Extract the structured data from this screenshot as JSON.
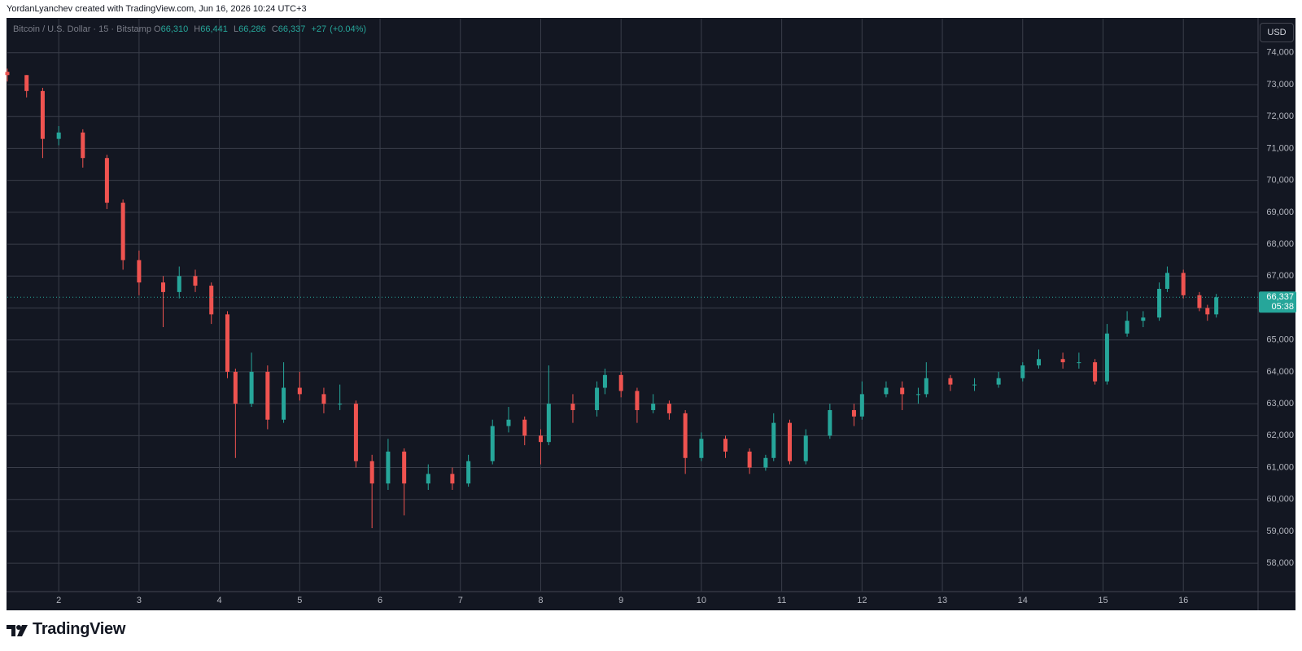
{
  "header": {
    "credit": "YordanLyanchev created with TradingView.com, Jun 16, 2026 10:24 UTC+3"
  },
  "footer": {
    "brand": "TradingView"
  },
  "chart_data": {
    "type": "candlestick",
    "symbol": "Bitcoin / U.S. Dollar · 15 · Bitstamp",
    "currency": "USD",
    "legend": {
      "open_prefix": "O",
      "open": {
        "value": 66310,
        "label": "66,310"
      },
      "high_prefix": "H",
      "high": {
        "value": 66441,
        "label": "66,441"
      },
      "low_prefix": "L",
      "low": {
        "value": 66286,
        "label": "66,286"
      },
      "close_prefix": "C",
      "close": {
        "value": 66337,
        "label": "66,337"
      },
      "change": {
        "value": 27,
        "label": "+27"
      },
      "change_pct": {
        "value": 0.04,
        "label": "(+0.04%)"
      }
    },
    "last_price": {
      "value": 66337,
      "label": "66,337"
    },
    "countdown": "05:38",
    "up_color": "#26a69a",
    "down_color": "#ef5350",
    "grid": true,
    "xlim": [
      1.36,
      16.93
    ],
    "ylim": [
      57112,
      75066
    ],
    "xticks": [
      2,
      3,
      4,
      5,
      6,
      7,
      8,
      9,
      10,
      11,
      12,
      13,
      14,
      15,
      16
    ],
    "yticks": [
      {
        "value": 58000,
        "label": "58,000"
      },
      {
        "value": 59000,
        "label": "59,000"
      },
      {
        "value": 60000,
        "label": "60,000"
      },
      {
        "value": 61000,
        "label": "61,000"
      },
      {
        "value": 62000,
        "label": "62,000"
      },
      {
        "value": 63000,
        "label": "63,000"
      },
      {
        "value": 64000,
        "label": "64,000"
      },
      {
        "value": 65000,
        "label": "65,000"
      },
      {
        "value": 66000,
        "label": "66,000"
      },
      {
        "value": 67000,
        "label": "67,000"
      },
      {
        "value": 68000,
        "label": "68,000"
      },
      {
        "value": 69000,
        "label": "69,000"
      },
      {
        "value": 70000,
        "label": "70,000"
      },
      {
        "value": 71000,
        "label": "71,000"
      },
      {
        "value": 72000,
        "label": "72,000"
      },
      {
        "value": 73000,
        "label": "73,000"
      },
      {
        "value": 74000,
        "label": "74,000"
      }
    ],
    "x": [
      1.36,
      1.6,
      1.8,
      2.0,
      2.3,
      2.6,
      2.8,
      3.0,
      3.3,
      3.5,
      3.7,
      3.9,
      4.1,
      4.2,
      4.4,
      4.6,
      4.8,
      5.0,
      5.3,
      5.5,
      5.7,
      5.9,
      6.1,
      6.3,
      6.6,
      6.9,
      7.1,
      7.4,
      7.6,
      7.8,
      8.0,
      8.1,
      8.4,
      8.7,
      8.8,
      9.0,
      9.2,
      9.4,
      9.6,
      9.8,
      10.0,
      10.3,
      10.6,
      10.8,
      10.9,
      11.1,
      11.3,
      11.6,
      11.9,
      12.0,
      12.3,
      12.5,
      12.7,
      12.8,
      13.1,
      13.4,
      13.7,
      14.0,
      14.2,
      14.5,
      14.7,
      14.9,
      15.05,
      15.3,
      15.5,
      15.7,
      15.8,
      16.0,
      16.2,
      16.3,
      16.41
    ],
    "open": [
      73400,
      73300,
      72800,
      71300,
      71500,
      70700,
      69300,
      67500,
      66800,
      66500,
      67000,
      66700,
      65800,
      64000,
      63000,
      64000,
      62500,
      63500,
      63300,
      63000,
      63000,
      61200,
      60500,
      61500,
      60500,
      60800,
      60500,
      61200,
      62300,
      62500,
      62000,
      61800,
      63000,
      62800,
      63500,
      63900,
      63400,
      62800,
      63000,
      62700,
      61300,
      61900,
      61500,
      61000,
      61300,
      62400,
      61200,
      62000,
      62800,
      62600,
      63300,
      63500,
      63300,
      63300,
      63800,
      63600,
      63600,
      63800,
      64200,
      64400,
      64300,
      64300,
      63700,
      65200,
      65600,
      65700,
      66600,
      67100,
      66400,
      66000,
      65800
    ],
    "high": [
      73500,
      73300,
      72900,
      71700,
      71600,
      70800,
      69400,
      67800,
      67000,
      67300,
      67200,
      66800,
      65900,
      64100,
      64600,
      64200,
      64300,
      64000,
      63500,
      63600,
      63100,
      61400,
      61900,
      61600,
      61100,
      61000,
      61400,
      62500,
      62900,
      62600,
      62200,
      64200,
      63300,
      63700,
      64100,
      64000,
      63500,
      63300,
      63100,
      62800,
      62100,
      62000,
      61600,
      61400,
      62700,
      62500,
      62200,
      63000,
      63000,
      63700,
      63700,
      63700,
      63500,
      64300,
      63900,
      63800,
      64000,
      64300,
      64700,
      64600,
      64600,
      64400,
      65500,
      65900,
      65900,
      66800,
      67300,
      67200,
      66500,
      66100,
      66441
    ],
    "low": [
      73100,
      72600,
      70700,
      71100,
      70400,
      69100,
      67200,
      66400,
      65400,
      66300,
      66500,
      65500,
      63800,
      61300,
      62900,
      62200,
      62400,
      63100,
      62700,
      62800,
      61000,
      59100,
      60300,
      59500,
      60300,
      60300,
      60400,
      61100,
      62100,
      61700,
      61100,
      61700,
      62400,
      62600,
      63300,
      63200,
      62400,
      62700,
      62500,
      60800,
      61200,
      61300,
      60800,
      60900,
      61200,
      61100,
      61100,
      61900,
      62300,
      62500,
      63200,
      62800,
      63000,
      63200,
      63400,
      63400,
      63500,
      63700,
      64100,
      64100,
      64100,
      63600,
      63600,
      65100,
      65400,
      65600,
      66500,
      66300,
      65900,
      65600,
      65700
    ],
    "close": [
      73300,
      72800,
      71300,
      71500,
      70700,
      69300,
      67500,
      66800,
      66500,
      67000,
      66700,
      65800,
      64000,
      63000,
      64000,
      62500,
      63500,
      63300,
      63000,
      63000,
      61200,
      60500,
      61500,
      60500,
      60800,
      60500,
      61200,
      62300,
      62500,
      62000,
      61800,
      63000,
      62800,
      63500,
      63900,
      63400,
      62800,
      63000,
      62700,
      61300,
      61900,
      61500,
      61000,
      61300,
      62400,
      61200,
      62000,
      62800,
      62600,
      63300,
      63500,
      63300,
      63300,
      63800,
      63600,
      63600,
      63800,
      64200,
      64400,
      64300,
      64300,
      63700,
      65200,
      65600,
      65700,
      66600,
      67100,
      66400,
      66000,
      65800,
      66337
    ]
  }
}
